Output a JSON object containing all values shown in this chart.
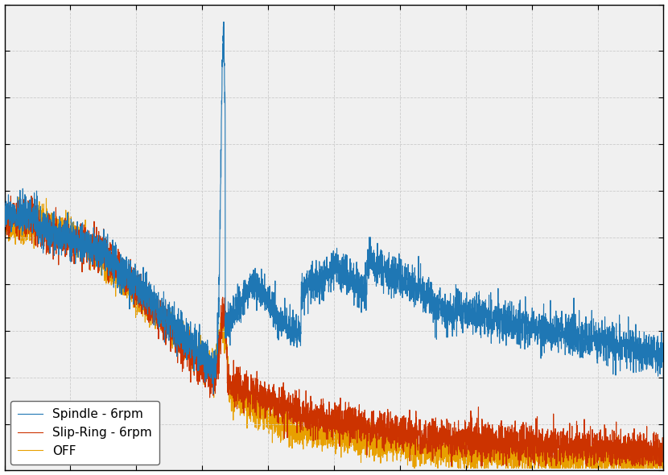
{
  "legend_labels": [
    "Spindle - 6rpm",
    "Slip-Ring - 6rpm",
    "OFF"
  ],
  "colors": [
    "#1f77b4",
    "#cc3300",
    "#e8a000"
  ],
  "line_width": 0.8,
  "grid_color": "#cccccc",
  "background_color": "#f0f0f0",
  "xlim": [
    0,
    1000
  ],
  "ylim": [
    0,
    1.0
  ],
  "n_points": 5000,
  "seed_spindle": 42,
  "seed_slipring": 123,
  "seed_off": 456,
  "legend_loc": "lower left",
  "legend_fontsize": 11
}
